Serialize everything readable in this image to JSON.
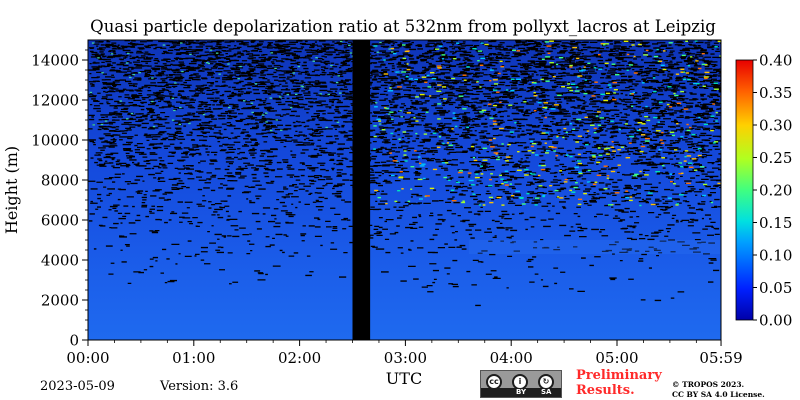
{
  "chart_data": {
    "type": "heatmap",
    "title": "Quasi particle depolarization ratio at 532nm from pollyxt_lacros at Leipzig",
    "xlabel": "UTC",
    "ylabel": "Height (m)",
    "x_ticks": [
      "00:00",
      "01:00",
      "02:00",
      "03:00",
      "04:00",
      "05:00",
      "05:59"
    ],
    "x_range_hours": [
      0,
      5.983
    ],
    "y_ticks": [
      0,
      2000,
      4000,
      6000,
      8000,
      10000,
      12000,
      14000
    ],
    "ylim": [
      0,
      15000
    ],
    "no_data_interval_utc": [
      "02:30",
      "02:40"
    ],
    "colorbar": {
      "min": 0.0,
      "max": 0.4,
      "ticks": [
        "0.00",
        "0.05",
        "0.10",
        "0.15",
        "0.20",
        "0.25",
        "0.30",
        "0.35",
        "0.40"
      ],
      "colormap": "jet",
      "missing_color": "#000000"
    },
    "background_value_range": [
      0.0,
      0.08
    ],
    "description_of_field": "low values (0.02-0.05) dominate near the surface; values become noisy with increasing height; a slightly elevated layer near 4500-5000 m after 04:00; scattered higher values (0.15-0.35) above 8000 m after 03:30"
  },
  "footer": {
    "date": "2023-05-09",
    "version": "Version: 3.6",
    "license_badge": {
      "top_text": "cc",
      "by": "BY",
      "sa": "SA"
    },
    "preliminary": [
      "Preliminary",
      "Results."
    ],
    "copyright": [
      "© TROPOS 2023.",
      "CC BY SA 4.0 License."
    ]
  }
}
